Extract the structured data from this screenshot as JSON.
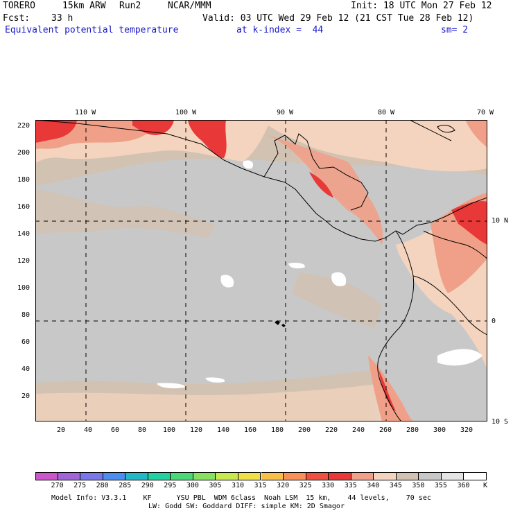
{
  "header": {
    "model": "TORERO",
    "resolution": "15km ARW",
    "run": "Run2",
    "org": "NCAR/MMM",
    "init": "Init: 18 UTC Mon 27 Feb 12",
    "fcst_label": "Fcst:",
    "fcst_value": "33 h",
    "valid": "Valid: 03 UTC Wed 29 Feb 12 (21 CST Tue 28 Feb 12)",
    "field": "Equivalent potential temperature",
    "level": "at k-index =  44",
    "smooth": "sm= 2"
  },
  "map": {
    "top_lon_labels": [
      "110 W",
      "100 W",
      "90 W",
      "80 W",
      "70 W"
    ],
    "right_lat_labels": [
      "10 N",
      "0",
      "10 S"
    ],
    "left_ticks": [
      "220",
      "200",
      "180",
      "160",
      "140",
      "120",
      "100",
      "80",
      "60",
      "40",
      "20"
    ],
    "bottom_ticks": [
      "20",
      "40",
      "60",
      "80",
      "100",
      "120",
      "140",
      "160",
      "180",
      "200",
      "220",
      "240",
      "260",
      "280",
      "300",
      "320"
    ]
  },
  "legend": {
    "labels": [
      "270",
      "275",
      "280",
      "285",
      "290",
      "295",
      "300",
      "305",
      "310",
      "315",
      "320",
      "325",
      "330",
      "335",
      "340",
      "345",
      "350",
      "355",
      "360"
    ],
    "unit": "K",
    "colors": [
      "#cc55cc",
      "#a066d8",
      "#7a78e8",
      "#4c8ef0",
      "#22b8c8",
      "#22d0a0",
      "#4cd878",
      "#88e060",
      "#c8e850",
      "#f0e048",
      "#f8c048",
      "#f89058",
      "#f05040",
      "#e83838",
      "#f0a088",
      "#f4d4be",
      "#d2c2b2",
      "#c8c8c8",
      "#e4e4e4",
      "#ffffff"
    ]
  },
  "footer": {
    "line1": "Model Info: V3.3.1    KF      YSU PBL  WDM 6class  Noah LSM  15 km,    44 levels,    70 sec",
    "line2": "LW: Godd SW: Goddard DIFF: simple KM: 2D Smagor"
  }
}
